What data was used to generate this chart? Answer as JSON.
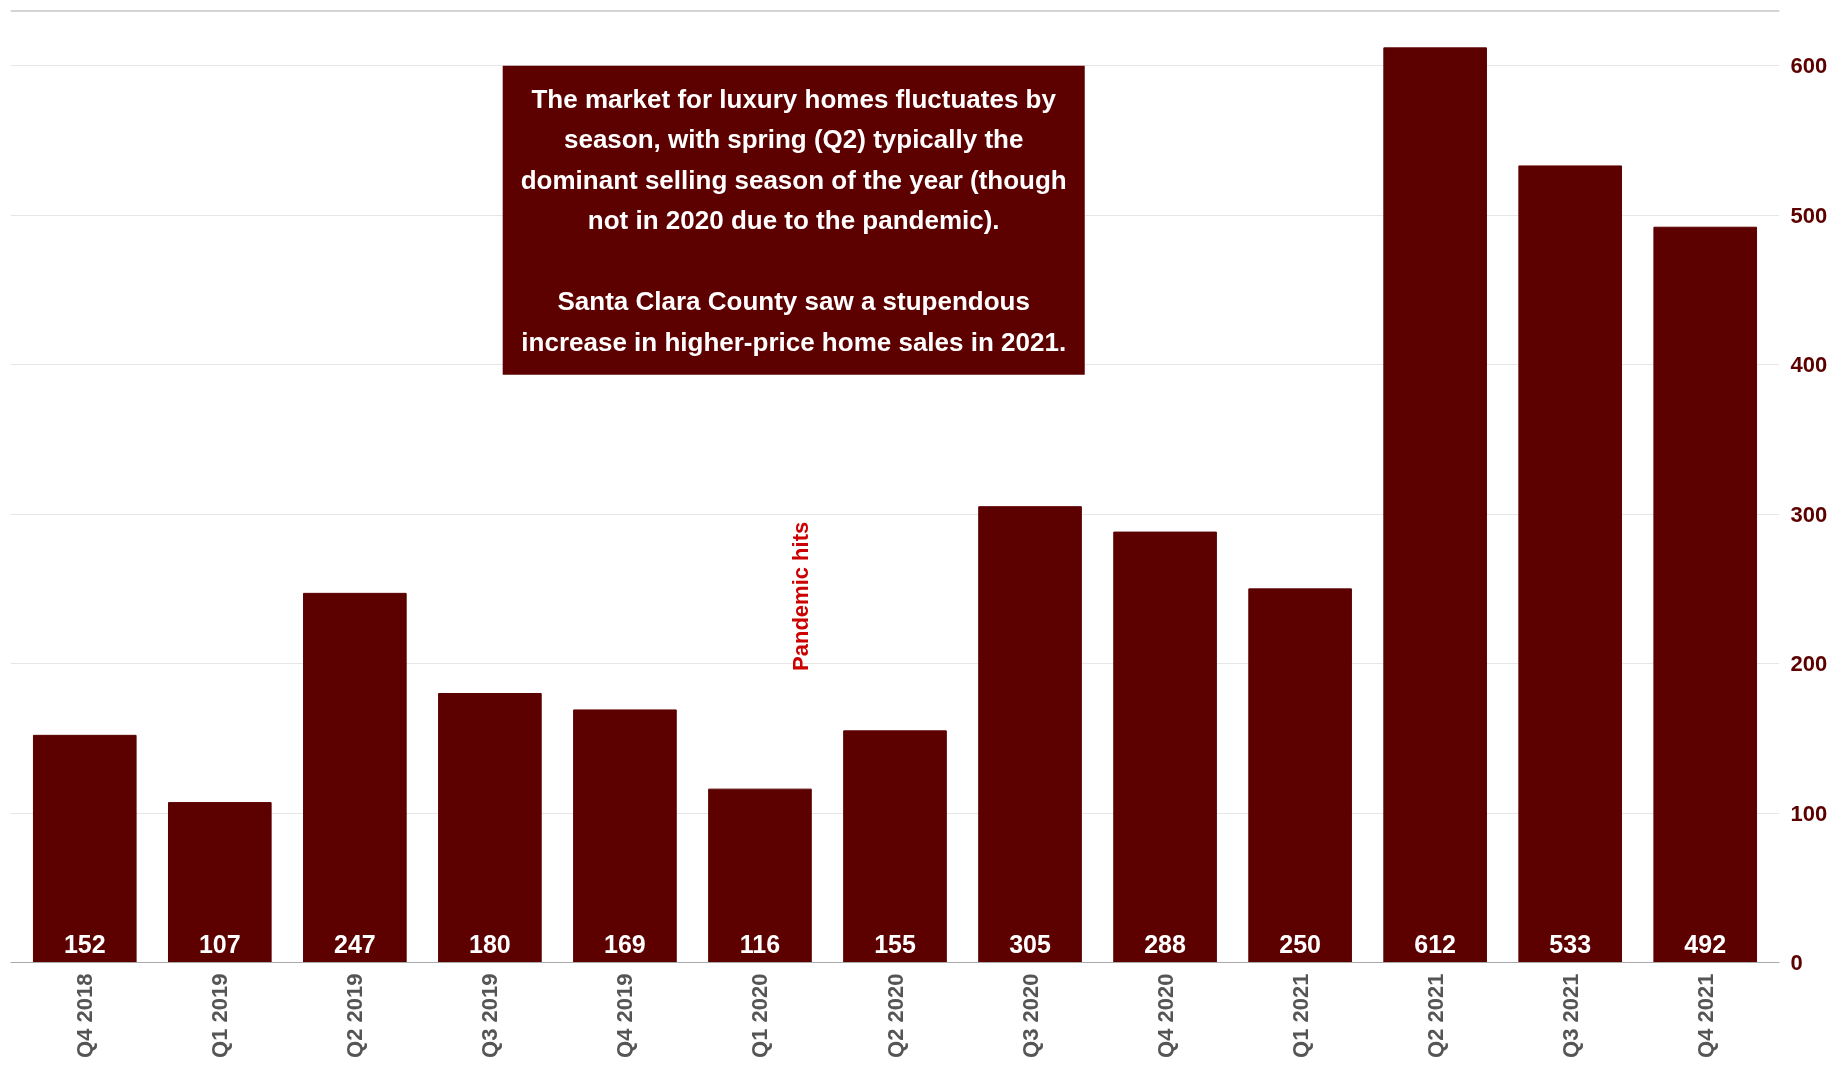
{
  "chart_data": {
    "type": "bar",
    "categories": [
      "Q4 2018",
      "Q1 2019",
      "Q2 2019",
      "Q3 2019",
      "Q4 2019",
      "Q1 2020",
      "Q2 2020",
      "Q3 2020",
      "Q4 2020",
      "Q1 2021",
      "Q2 2021",
      "Q3 2021",
      "Q4 2021"
    ],
    "values": [
      152,
      107,
      247,
      180,
      169,
      116,
      155,
      305,
      288,
      250,
      612,
      533,
      492
    ],
    "color": "#5c0000",
    "ylim": [
      0,
      637
    ],
    "yticks": [
      0,
      100,
      200,
      300,
      400,
      500,
      600
    ],
    "grid": "y",
    "data_labels": true,
    "annotations": [
      "The market for luxury homes fluctuates by\nseason, with spring (Q2) typically the\ndominant selling season of the year (though\nnot in 2020 due to the pandemic).\n\nSanta Clara County saw a stupendous\nincrease in higher-price home sales in 2021.",
      "Pandemic hits"
    ]
  }
}
